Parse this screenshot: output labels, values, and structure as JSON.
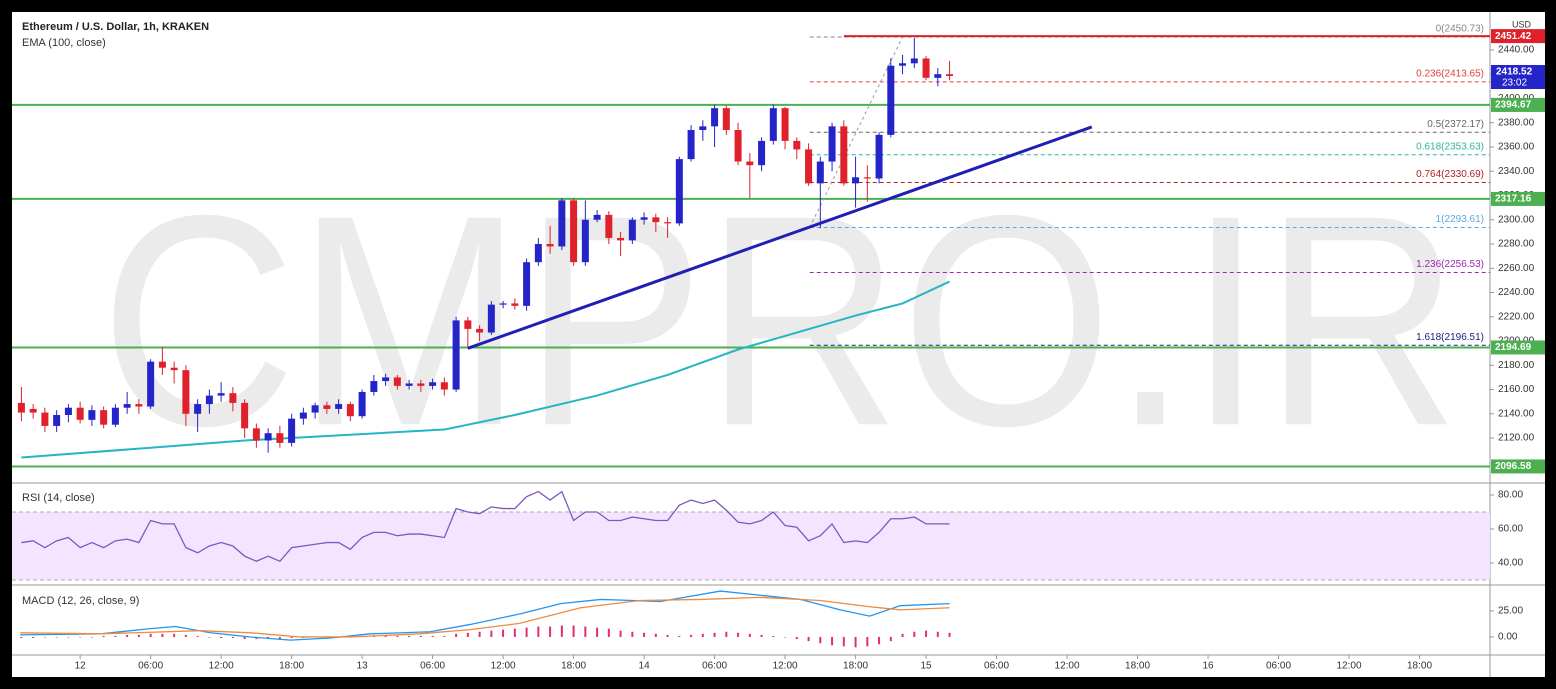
{
  "chart_data": {
    "type": "candlestick",
    "title": "Ethereum / U.S. Dollar, 1h, KRAKEN",
    "indicator_label": "EMA (100, close)",
    "watermark": "CMPRO.IR",
    "currency": "USD",
    "up_color": "#2424c8",
    "down_color": "#e0202b",
    "xlim": [
      -5.8,
      120
    ],
    "xticks": [
      {
        "value": 0,
        "label": "12"
      },
      {
        "value": 6,
        "label": "06:00"
      },
      {
        "value": 12,
        "label": "12:00"
      },
      {
        "value": 18,
        "label": "18:00"
      },
      {
        "value": 24,
        "label": "13"
      },
      {
        "value": 30,
        "label": "06:00"
      },
      {
        "value": 36,
        "label": "12:00"
      },
      {
        "value": 42,
        "label": "18:00"
      },
      {
        "value": 48,
        "label": "14"
      },
      {
        "value": 54,
        "label": "06:00"
      },
      {
        "value": 60,
        "label": "12:00"
      },
      {
        "value": 66,
        "label": "18:00"
      },
      {
        "value": 72,
        "label": "15"
      },
      {
        "value": 78,
        "label": "06:00"
      },
      {
        "value": 84,
        "label": "12:00"
      },
      {
        "value": 90,
        "label": "18:00"
      },
      {
        "value": 96,
        "label": "16"
      },
      {
        "value": 102,
        "label": "06:00"
      },
      {
        "value": 108,
        "label": "12:00"
      },
      {
        "value": 114,
        "label": "18:00"
      }
    ],
    "ylim": [
      2085.4,
      2471.3
    ],
    "yticks": [
      {
        "value": 2120,
        "label": "2120.00"
      },
      {
        "value": 2140,
        "label": "2140.00"
      },
      {
        "value": 2160,
        "label": "2160.00"
      },
      {
        "value": 2180,
        "label": "2180.00"
      },
      {
        "value": 2200,
        "label": "2200.00"
      },
      {
        "value": 2220,
        "label": "2220.00"
      },
      {
        "value": 2240,
        "label": "2240.00"
      },
      {
        "value": 2260,
        "label": "2260.00"
      },
      {
        "value": 2280,
        "label": "2280.00"
      },
      {
        "value": 2300,
        "label": "2300.00"
      },
      {
        "value": 2320,
        "label": "2320.00"
      },
      {
        "value": 2340,
        "label": "2340.00"
      },
      {
        "value": 2360,
        "label": "2360.00"
      },
      {
        "value": 2380,
        "label": "2380.00"
      },
      {
        "value": 2400,
        "label": "2400.00"
      },
      {
        "value": 2420,
        "label": "2420.00"
      },
      {
        "value": 2440,
        "label": "2440.00"
      }
    ],
    "candles": {
      "x": [
        -5,
        -4,
        -3,
        -2,
        -1,
        0,
        1,
        2,
        3,
        4,
        5,
        6,
        7,
        8,
        9,
        10,
        11,
        12,
        13,
        14,
        15,
        16,
        17,
        18,
        19,
        20,
        21,
        22,
        23,
        24,
        25,
        26,
        27,
        28,
        29,
        30,
        31,
        32,
        33,
        34,
        35,
        36,
        37,
        38,
        39,
        40,
        41,
        42,
        43,
        44,
        45,
        46,
        47,
        48,
        49,
        50,
        51,
        52,
        53,
        54,
        55,
        56,
        57,
        58,
        59,
        60,
        61,
        62,
        63,
        64,
        65,
        66,
        67,
        68,
        69,
        70,
        71,
        72,
        73,
        74
      ],
      "open": [
        2149,
        2144,
        2141,
        2130,
        2139,
        2145,
        2135,
        2143,
        2131,
        2145,
        2148,
        2146,
        2183,
        2178,
        2176,
        2140,
        2148,
        2155,
        2157,
        2149,
        2128,
        2118,
        2124,
        2116,
        2136,
        2141,
        2147,
        2144,
        2148,
        2138,
        2158,
        2167,
        2170,
        2163,
        2165,
        2163,
        2166,
        2160,
        2217,
        2210,
        2207,
        2230,
        2231,
        2229,
        2265,
        2280,
        2278,
        2316,
        2265,
        2300,
        2304,
        2285,
        2283,
        2300,
        2302,
        2298,
        2297,
        2350,
        2374,
        2377,
        2392,
        2374,
        2348,
        2345,
        2365,
        2392,
        2365,
        2358,
        2330,
        2348,
        2377,
        2330,
        2335,
        2334,
        2370,
        2427,
        2429,
        2433,
        2417,
        2420
      ],
      "high": [
        2162,
        2148,
        2145,
        2143,
        2148,
        2150,
        2147,
        2146,
        2148,
        2158,
        2152,
        2185,
        2195,
        2183,
        2180,
        2152,
        2160,
        2166,
        2162,
        2152,
        2132,
        2128,
        2130,
        2140,
        2145,
        2149,
        2150,
        2152,
        2150,
        2160,
        2172,
        2173,
        2172,
        2168,
        2168,
        2169,
        2170,
        2220,
        2220,
        2213,
        2233,
        2233,
        2235,
        2268,
        2285,
        2295,
        2318,
        2318,
        2316,
        2308,
        2307,
        2290,
        2302,
        2306,
        2305,
        2302,
        2352,
        2378,
        2382,
        2395,
        2394,
        2380,
        2355,
        2368,
        2395,
        2393,
        2368,
        2363,
        2352,
        2380,
        2382,
        2352,
        2345,
        2372,
        2433,
        2436,
        2450,
        2435,
        2425,
        2431
      ],
      "low": [
        2134,
        2136,
        2125,
        2125,
        2133,
        2132,
        2130,
        2128,
        2129,
        2140,
        2140,
        2144,
        2172,
        2165,
        2130,
        2125,
        2140,
        2150,
        2142,
        2120,
        2112,
        2108,
        2112,
        2113,
        2131,
        2136,
        2140,
        2140,
        2134,
        2136,
        2155,
        2163,
        2160,
        2160,
        2158,
        2160,
        2155,
        2158,
        2195,
        2200,
        2205,
        2227,
        2226,
        2225,
        2262,
        2272,
        2275,
        2262,
        2262,
        2298,
        2280,
        2270,
        2280,
        2296,
        2290,
        2285,
        2295,
        2348,
        2365,
        2360,
        2370,
        2345,
        2318,
        2340,
        2362,
        2358,
        2350,
        2328,
        2293,
        2340,
        2328,
        2310,
        2315,
        2330,
        2368,
        2420,
        2425,
        2415,
        2410,
        2415
      ],
      "close": [
        2141,
        2141,
        2130,
        2139,
        2145,
        2135,
        2143,
        2131,
        2145,
        2148,
        2146,
        2183,
        2178,
        2176,
        2140,
        2148,
        2155,
        2157,
        2149,
        2128,
        2118,
        2124,
        2116,
        2136,
        2141,
        2147,
        2144,
        2148,
        2138,
        2158,
        2167,
        2170,
        2163,
        2165,
        2163,
        2166,
        2160,
        2217,
        2210,
        2207,
        2230,
        2231,
        2229,
        2265,
        2280,
        2278,
        2316,
        2265,
        2300,
        2304,
        2285,
        2283,
        2300,
        2302,
        2298,
        2297,
        2350,
        2374,
        2377,
        2392,
        2374,
        2348,
        2345,
        2365,
        2392,
        2365,
        2358,
        2330,
        2348,
        2377,
        2330,
        2335,
        2334,
        2370,
        2427,
        2429,
        2433,
        2417,
        2420,
        2418.52
      ]
    },
    "countdown": "23:02",
    "ema": {
      "color": "#26b5c4",
      "x": [
        -5,
        6,
        14,
        31,
        37,
        44,
        50,
        56,
        61,
        66,
        70,
        74
      ],
      "values": [
        2104,
        2112,
        2118,
        2127,
        2139,
        2155,
        2172,
        2193,
        2207,
        2221,
        2231,
        2249
      ]
    },
    "levels": {
      "color": "#4caf50",
      "values": [
        2394.67,
        2317.16,
        2194.69,
        2096.58
      ]
    },
    "resistance": {
      "color": "#e0202b",
      "x": 65,
      "value": 2451.42
    },
    "trendline": {
      "color": "#1f1fb4",
      "x": [
        33,
        86.1
      ],
      "y": [
        2194,
        2376.5
      ]
    },
    "fib": {
      "x": [
        62.1,
        70
      ],
      "y": [
        2293.61,
        2450.73
      ],
      "levels": [
        {
          "label": "0(2450.73)",
          "value": 2450.73,
          "color": "#888888"
        },
        {
          "label": "0.236(2413.65)",
          "value": 2413.65,
          "color": "#e04040"
        },
        {
          "label": "0.5(2372.17)",
          "value": 2372.17,
          "color": "#666666"
        },
        {
          "label": "0.618(2353.63)",
          "value": 2353.63,
          "color": "#2fb59a"
        },
        {
          "label": "0.764(2330.69)",
          "value": 2330.69,
          "color": "#b22222"
        },
        {
          "label": "1(2293.61)",
          "value": 2293.61,
          "color": "#5aa9d6"
        },
        {
          "label": "1.236(2256.53)",
          "value": 2256.53,
          "color": "#9c27b0"
        },
        {
          "label": "1.618(2196.51)",
          "value": 2196.51,
          "color": "#1a237e"
        }
      ]
    },
    "rsi": {
      "label": "RSI (14, close)",
      "color": "#7e57c2",
      "band": [
        30,
        70
      ],
      "band_color": "#f3e5ff",
      "ylim": [
        28.2,
        84.7
      ],
      "yticks": [
        {
          "value": 40,
          "label": "40.00"
        },
        {
          "value": 60,
          "label": "60.00"
        },
        {
          "value": 80,
          "label": "80.00"
        }
      ],
      "values": [
        52,
        53,
        49,
        53,
        55,
        49,
        52,
        49,
        53,
        54,
        52,
        65,
        63,
        63,
        49,
        46,
        50,
        52,
        50,
        44,
        41,
        44,
        41,
        49,
        50,
        51,
        52,
        52,
        48,
        55,
        58,
        58,
        56,
        57,
        57,
        56,
        55,
        72,
        70,
        69,
        73,
        72,
        72,
        79,
        82,
        77,
        82,
        65,
        70,
        70,
        65,
        65,
        67,
        66,
        65,
        65,
        74,
        77,
        75,
        77,
        71,
        64,
        63,
        65,
        70,
        62,
        61,
        53,
        56,
        63,
        52,
        53,
        52,
        58,
        66,
        66,
        67,
        63,
        63,
        63
      ]
    },
    "macd": {
      "label": "MACD (12, 26, close, 9)",
      "ylim": [
        -17.3,
        46
      ],
      "yticks": [
        {
          "value": 0,
          "label": "0.00"
        },
        {
          "value": 25,
          "label": "25.00"
        }
      ],
      "macd_line": {
        "color": "#2196f3",
        "x": [
          -5.1,
          1.7,
          6,
          8.1,
          11.1,
          14.5,
          17.9,
          21.3,
          24.7,
          29.8,
          33.2,
          37.4,
          40.9,
          44.3,
          49.4,
          54.5,
          57.9,
          61.3,
          64.7,
          67.2,
          69.8,
          74
        ],
        "values": [
          2,
          3,
          8,
          10,
          4,
          0,
          -3,
          -1,
          3,
          5,
          12,
          22,
          32,
          36,
          34,
          44,
          40,
          36,
          26,
          20,
          30,
          32
        ]
      },
      "signal_line": {
        "color": "#f08a3c",
        "x": [
          -5.1,
          1.7,
          10.2,
          14.5,
          18.7,
          23,
          28.9,
          33.2,
          37.4,
          42.6,
          47.7,
          52.8,
          57.9,
          63,
          67.2,
          69.8,
          74
        ],
        "values": [
          4,
          3,
          6,
          4,
          0,
          0,
          3,
          7,
          13,
          28,
          35,
          36,
          38,
          35,
          29,
          26,
          28
        ]
      },
      "histogram": {
        "color": "#e0306a",
        "values": [
          -1,
          -1,
          0,
          0,
          0,
          0,
          0,
          1,
          1,
          2,
          2,
          3,
          3,
          3,
          2,
          1,
          0,
          -1,
          -1,
          -2,
          -2,
          -2,
          -2,
          -1,
          -1,
          0,
          0,
          0,
          0,
          1,
          1,
          1,
          1,
          1,
          1,
          1,
          1,
          3,
          4,
          5,
          6,
          7,
          8,
          9,
          10,
          10,
          11,
          11,
          10,
          9,
          8,
          6,
          5,
          4,
          3,
          2,
          1,
          2,
          3,
          4,
          5,
          4,
          3,
          2,
          1,
          0,
          -2,
          -4,
          -6,
          -8,
          -9,
          -10,
          -9,
          -7,
          -4,
          3,
          5,
          6,
          5,
          4
        ]
      }
    }
  }
}
